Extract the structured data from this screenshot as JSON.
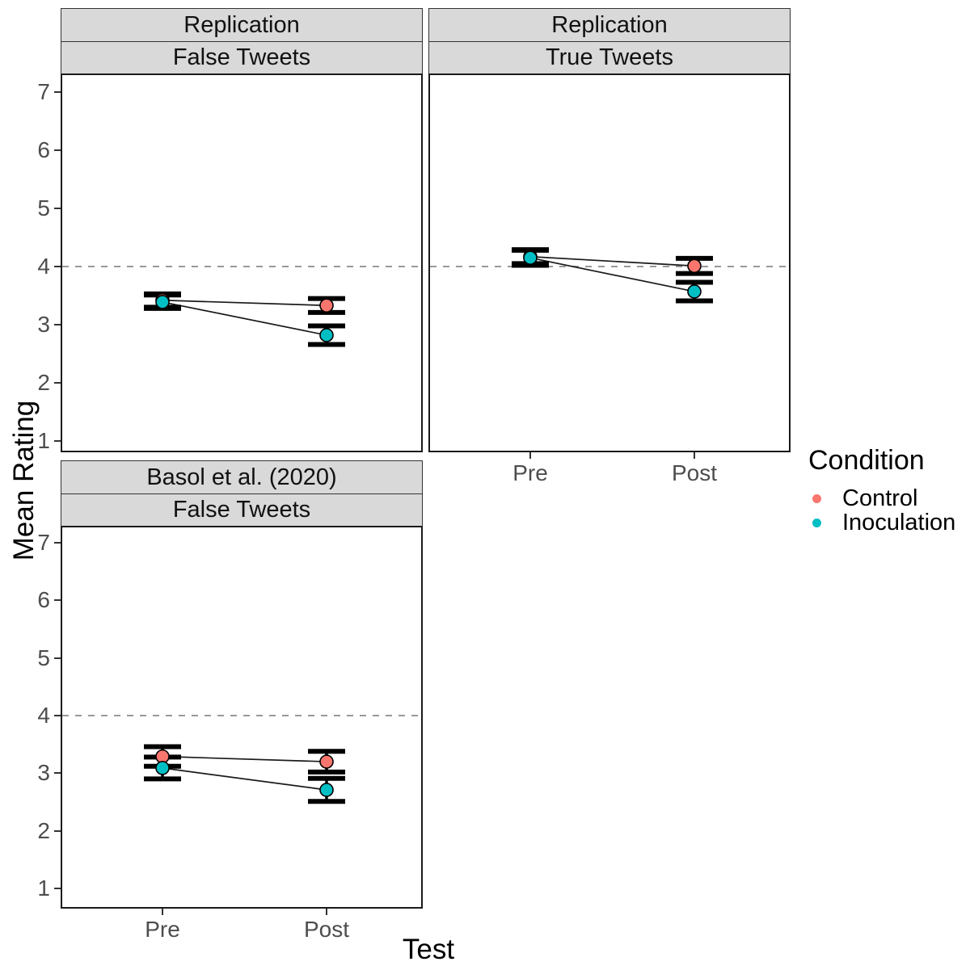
{
  "figure": {
    "y_axis_title": "Mean Rating",
    "x_axis_title": "Test",
    "y_ticks": [
      "7",
      "6",
      "5",
      "4",
      "3",
      "2",
      "1"
    ],
    "x_ticks": [
      "Pre",
      "Post"
    ],
    "colors": {
      "control": "#F8766D",
      "inoculation": "#00BFC4",
      "strip_background": "#D9D9D9",
      "reference_line": "#999999",
      "errorbar": "#000000",
      "trend_line": "#1A1A1A"
    }
  },
  "legend": {
    "title": "Condition",
    "items": [
      {
        "label": "Control",
        "color": "#F8766D"
      },
      {
        "label": "Inoculation",
        "color": "#00BFC4"
      }
    ]
  },
  "chart_data": [
    {
      "type": "line",
      "facet_row": "Replication",
      "facet_col": "False Tweets",
      "x": [
        "Pre",
        "Post"
      ],
      "ylabel": "Mean Rating",
      "xlabel": "Test",
      "ylim": [
        1,
        7
      ],
      "reference_line_y": 4,
      "series": [
        {
          "name": "Control",
          "color": "#F8766D",
          "values": [
            3.42,
            3.33
          ],
          "ci_low": [
            3.3,
            3.21
          ],
          "ci_high": [
            3.53,
            3.45
          ]
        },
        {
          "name": "Inoculation",
          "color": "#00BFC4",
          "values": [
            3.39,
            2.82
          ],
          "ci_low": [
            3.28,
            2.66
          ],
          "ci_high": [
            3.51,
            2.98
          ]
        }
      ]
    },
    {
      "type": "line",
      "facet_row": "Replication",
      "facet_col": "True Tweets",
      "x": [
        "Pre",
        "Post"
      ],
      "ylabel": "Mean Rating",
      "xlabel": "Test",
      "ylim": [
        1,
        7
      ],
      "reference_line_y": 4,
      "series": [
        {
          "name": "Control",
          "color": "#F8766D",
          "values": [
            4.17,
            4.01
          ],
          "ci_low": [
            4.05,
            3.88
          ],
          "ci_high": [
            4.29,
            4.14
          ]
        },
        {
          "name": "Inoculation",
          "color": "#00BFC4",
          "values": [
            4.15,
            3.57
          ],
          "ci_low": [
            4.02,
            3.41
          ],
          "ci_high": [
            4.28,
            3.73
          ]
        }
      ]
    },
    {
      "type": "line",
      "facet_row": "Basol et al. (2020)",
      "facet_col": "False Tweets",
      "x": [
        "Pre",
        "Post"
      ],
      "ylabel": "Mean Rating",
      "xlabel": "Test",
      "ylim": [
        1,
        7
      ],
      "reference_line_y": 4,
      "series": [
        {
          "name": "Control",
          "color": "#F8766D",
          "values": [
            3.29,
            3.2
          ],
          "ci_low": [
            3.12,
            3.02
          ],
          "ci_high": [
            3.46,
            3.38
          ]
        },
        {
          "name": "Inoculation",
          "color": "#00BFC4",
          "values": [
            3.09,
            2.71
          ],
          "ci_low": [
            2.9,
            2.51
          ],
          "ci_high": [
            3.28,
            2.91
          ]
        }
      ]
    }
  ]
}
